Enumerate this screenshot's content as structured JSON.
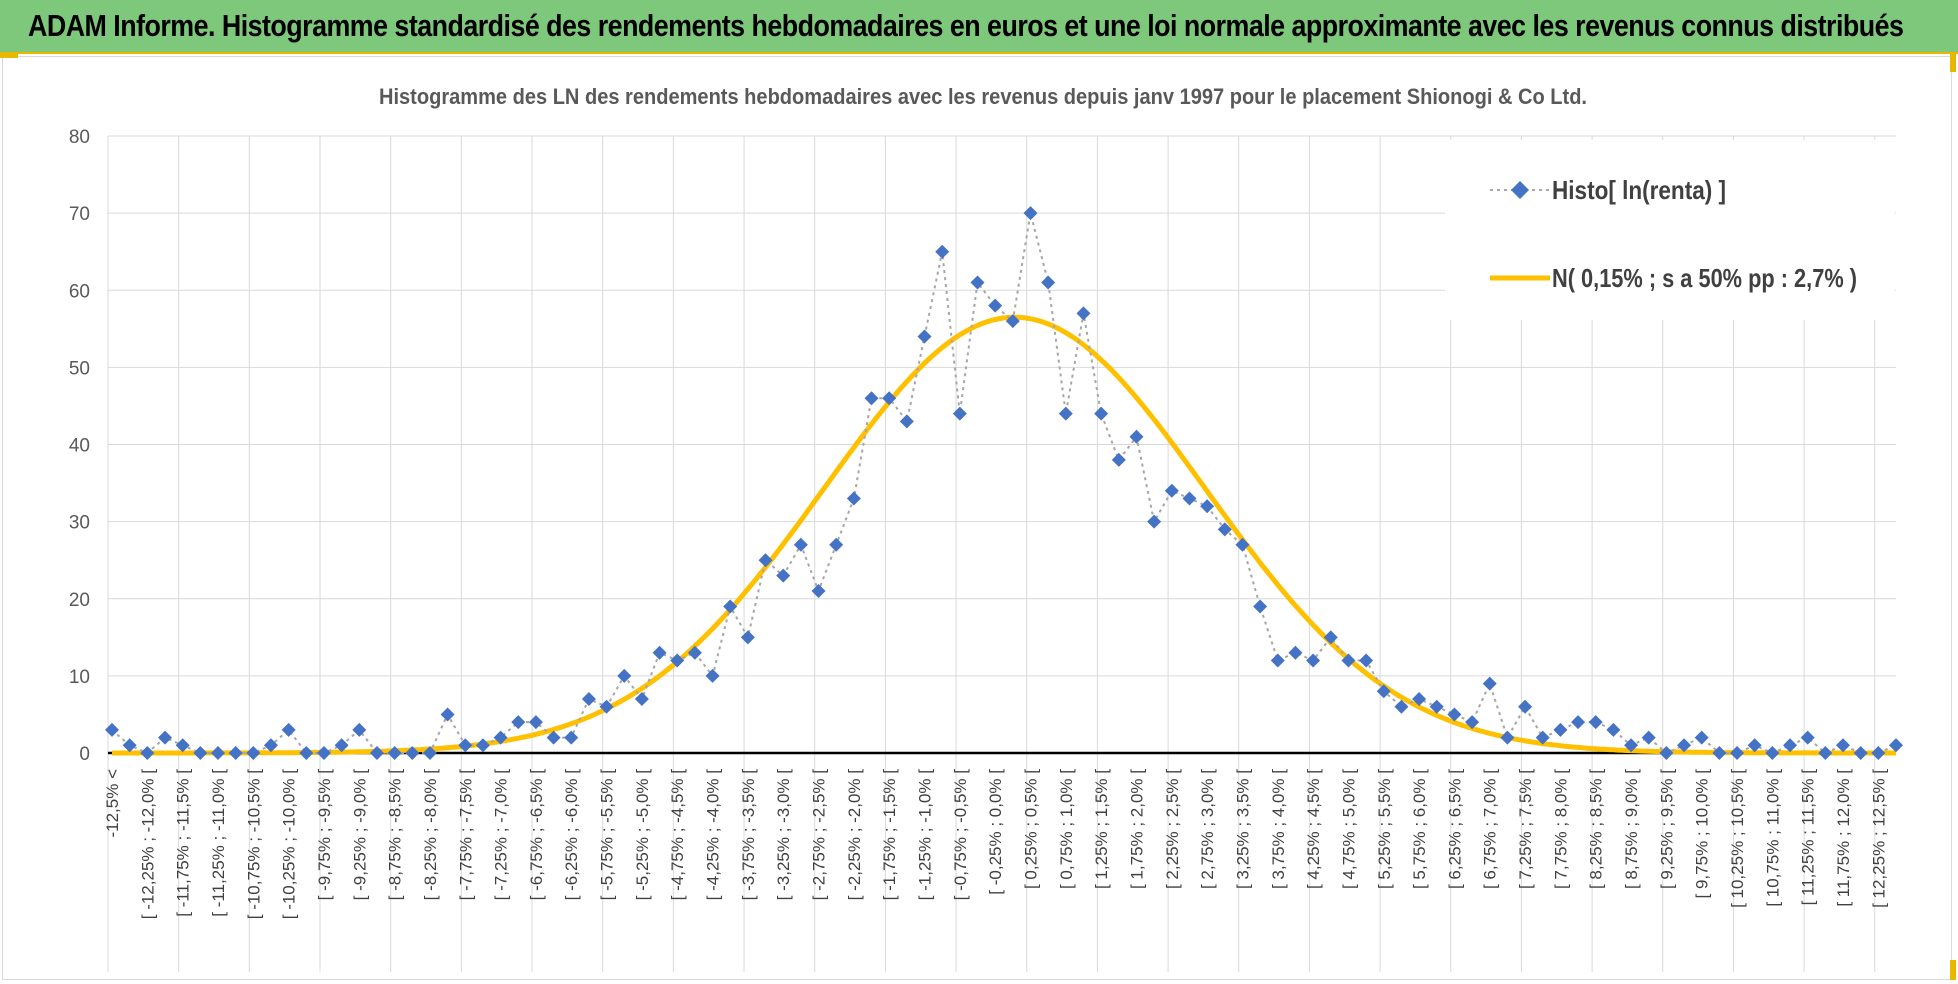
{
  "banner": {
    "title": "ADAM Informe. Histogramme standardisé des rendements hebdomadaires en euros et une loi normale approximante avec les revenus connus distribués",
    "background": "#7dc87a"
  },
  "chart_data": {
    "type": "line",
    "title": "Histogramme  des LN des rendements  hebdomadaires avec les revenus depuis janv 1997 pour le placement Shionogi & Co Ltd.",
    "xlabel": "",
    "ylabel": "",
    "ylim": [
      0,
      80
    ],
    "yticks": [
      0,
      10,
      20,
      30,
      40,
      50,
      60,
      70,
      80
    ],
    "grid": true,
    "legend_position": "top-right",
    "categories_labeled": [
      "-12,5% <",
      "[ -12,25% ; -12,0% [",
      "[ -11,75% ; -11,5% [",
      "[ -11,25% ; -11,0% [",
      "[ -10,75% ; -10,5% [",
      "[ -10,25% ; -10,0% [",
      "[ -9,75% ; -9,5% [",
      "[ -9,25% ; -9,0% [",
      "[ -8,75% ; -8,5% [",
      "[ -8,25% ; -8,0% [",
      "[ -7,75% ; -7,5% [",
      "[ -7,25% ; -7,0% [",
      "[ -6,75% ; -6,5% [",
      "[ -6,25% ; -6,0% [",
      "[ -5,75% ; -5,5% [",
      "[ -5,25% ; -5,0% [",
      "[ -4,75% ; -4,5% [",
      "[ -4,25% ; -4,0% [",
      "[ -3,75% ; -3,5% [",
      "[ -3,25% ; -3,0% [",
      "[ -2,75% ; -2,5% [",
      "[ -2,25% ; -2,0% [",
      "[ -1,75% ; -1,5% [",
      "[ -1,25% ; -1,0% [",
      "[ -0,75% ; -0,5% [",
      "[ -0,25% ; 0,0% [",
      "[ 0,25% ; 0,5% [",
      "[ 0,75% ; 1,0% [",
      "[ 1,25% ; 1,5% [",
      "[ 1,75% ; 2,0% [",
      "[ 2,25% ; 2,5% [",
      "[ 2,75% ; 3,0% [",
      "[ 3,25% ; 3,5% [",
      "[ 3,75% ; 4,0% [",
      "[ 4,25% ; 4,5% [",
      "[ 4,75% ; 5,0% [",
      "[ 5,25% ; 5,5% [",
      "[ 5,75% ; 6,0% [",
      "[ 6,25% ; 6,5% [",
      "[ 6,75% ; 7,0% [",
      "[ 7,25% ; 7,5% [",
      "[ 7,75% ; 8,0% [",
      "[ 8,25% ; 8,5% [",
      "[ 8,75% ; 9,0% [",
      "[ 9,25% ; 9,5% [",
      "[ 9,75% ; 10,0% [",
      "[ 10,25% ; 10,5% [",
      "[ 10,75% ; 11,0% [",
      "[ 11,25% ; 11,5% [",
      "[ 11,75% ; 12,0% [",
      "[ 12,25% ; 12,5% ["
    ],
    "series": [
      {
        "name": "Histo[ ln(renta) ]",
        "style": "dotted line with diamond markers",
        "color": "#4472c4",
        "values": [
          3,
          1,
          0,
          2,
          1,
          0,
          0,
          0,
          0,
          1,
          3,
          0,
          0,
          1,
          3,
          0,
          0,
          0,
          0,
          5,
          1,
          1,
          2,
          4,
          4,
          2,
          2,
          7,
          6,
          10,
          7,
          13,
          12,
          13,
          10,
          19,
          15,
          25,
          23,
          27,
          21,
          27,
          33,
          46,
          46,
          43,
          54,
          65,
          44,
          61,
          58,
          56,
          70,
          61,
          44,
          57,
          44,
          38,
          41,
          30,
          34,
          33,
          32,
          29,
          27,
          19,
          12,
          13,
          12,
          15,
          12,
          12,
          8,
          6,
          7,
          6,
          5,
          4,
          9,
          2,
          6,
          2,
          3,
          4,
          4,
          3,
          1,
          2,
          0,
          1,
          2,
          0,
          0,
          1,
          0,
          1,
          2,
          0,
          1,
          0,
          0,
          1
        ]
      },
      {
        "name": "N( 0,15% ; s a 50% pp : 2,7% )",
        "style": "smooth line",
        "color": "#ffc000",
        "mean_pct": 0.15,
        "sd_pct": 2.7,
        "peak": 56.5
      }
    ]
  }
}
